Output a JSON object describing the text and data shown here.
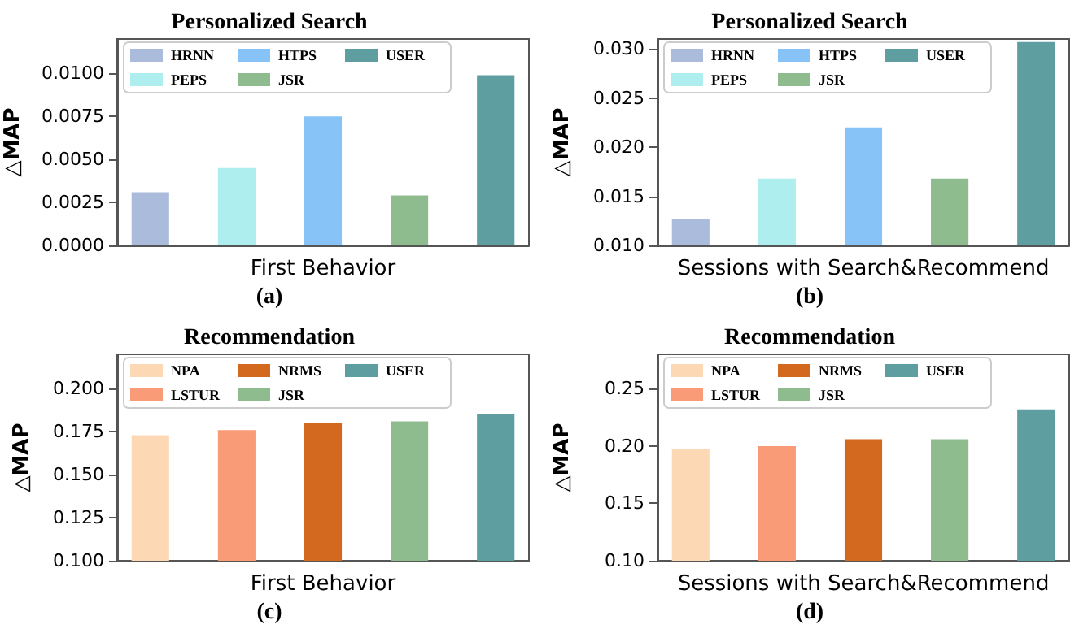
{
  "chart_data": [
    {
      "type": "bar",
      "title": "Personalized Search",
      "ylabel": "△MAP",
      "categories": [
        "First Behavior"
      ],
      "annotations": [
        "(a)"
      ],
      "legend": "top",
      "grid": false,
      "series": [
        {
          "name": "HRNN",
          "color": "#aabbdb",
          "values": [
            0.0031
          ]
        },
        {
          "name": "PEPS",
          "color": "#aeeeee",
          "values": [
            0.0045
          ]
        },
        {
          "name": "HTPS",
          "color": "#87c3f7",
          "values": [
            0.0075
          ]
        },
        {
          "name": "JSR",
          "color": "#8fbc8f",
          "values": [
            0.0029
          ]
        },
        {
          "name": "USER",
          "color": "#5f9ea0",
          "values": [
            0.0099
          ]
        }
      ],
      "ylim": [
        0,
        0.012
      ],
      "yticks": [
        {
          "value": 0,
          "label": "0.0000"
        },
        {
          "value": 0.0025,
          "label": "0.0025"
        },
        {
          "value": 0.005,
          "label": "0.0050"
        },
        {
          "value": 0.0075,
          "label": "0.0075"
        },
        {
          "value": 0.01,
          "label": "0.0100"
        }
      ]
    },
    {
      "type": "bar",
      "title": "Personalized Search",
      "ylabel": "△MAP",
      "categories": [
        "Sessions with Search&Recommend"
      ],
      "annotations": [
        "(b)"
      ],
      "legend": "top",
      "grid": false,
      "series": [
        {
          "name": "HRNN",
          "color": "#aabbdb",
          "values": [
            0.0127
          ]
        },
        {
          "name": "PEPS",
          "color": "#aeeeee",
          "values": [
            0.0168
          ]
        },
        {
          "name": "HTPS",
          "color": "#87c3f7",
          "values": [
            0.022
          ]
        },
        {
          "name": "JSR",
          "color": "#8fbc8f",
          "values": [
            0.0168
          ]
        },
        {
          "name": "USER",
          "color": "#5f9ea0",
          "values": [
            0.0307
          ]
        }
      ],
      "ylim": [
        0.01,
        0.031
      ],
      "yticks": [
        {
          "value": 0.01,
          "label": "0.010"
        },
        {
          "value": 0.015,
          "label": "0.015"
        },
        {
          "value": 0.02,
          "label": "0.020"
        },
        {
          "value": 0.025,
          "label": "0.025"
        },
        {
          "value": 0.03,
          "label": "0.030"
        }
      ]
    },
    {
      "type": "bar",
      "title": "Recommendation",
      "ylabel": "△MAP",
      "categories": [
        "First Behavior"
      ],
      "annotations": [
        "(c)"
      ],
      "legend": "top",
      "grid": false,
      "series": [
        {
          "name": "NPA",
          "color": "#fdd8b5",
          "values": [
            0.173
          ]
        },
        {
          "name": "LSTUR",
          "color": "#fa9b78",
          "values": [
            0.176
          ]
        },
        {
          "name": "NRMS",
          "color": "#d2691e",
          "values": [
            0.18
          ]
        },
        {
          "name": "JSR",
          "color": "#8fbc8f",
          "values": [
            0.181
          ]
        },
        {
          "name": "USER",
          "color": "#5f9ea0",
          "values": [
            0.185
          ]
        }
      ],
      "ylim": [
        0.1,
        0.22
      ],
      "yticks": [
        {
          "value": 0.1,
          "label": "0.100"
        },
        {
          "value": 0.125,
          "label": "0.125"
        },
        {
          "value": 0.15,
          "label": "0.150"
        },
        {
          "value": 0.175,
          "label": "0.175"
        },
        {
          "value": 0.2,
          "label": "0.200"
        }
      ]
    },
    {
      "type": "bar",
      "title": "Recommendation",
      "ylabel": "△MAP",
      "categories": [
        "Sessions with Search&Recommend"
      ],
      "annotations": [
        "(d)"
      ],
      "legend": "top",
      "grid": false,
      "series": [
        {
          "name": "NPA",
          "color": "#fdd8b5",
          "values": [
            0.197
          ]
        },
        {
          "name": "LSTUR",
          "color": "#fa9b78",
          "values": [
            0.2
          ]
        },
        {
          "name": "NRMS",
          "color": "#d2691e",
          "values": [
            0.206
          ]
        },
        {
          "name": "JSR",
          "color": "#8fbc8f",
          "values": [
            0.206
          ]
        },
        {
          "name": "USER",
          "color": "#5f9ea0",
          "values": [
            0.232
          ]
        }
      ],
      "ylim": [
        0.1,
        0.28
      ],
      "yticks": [
        {
          "value": 0.1,
          "label": "0.10"
        },
        {
          "value": 0.15,
          "label": "0.15"
        },
        {
          "value": 0.2,
          "label": "0.20"
        },
        {
          "value": 0.25,
          "label": "0.25"
        }
      ]
    }
  ]
}
